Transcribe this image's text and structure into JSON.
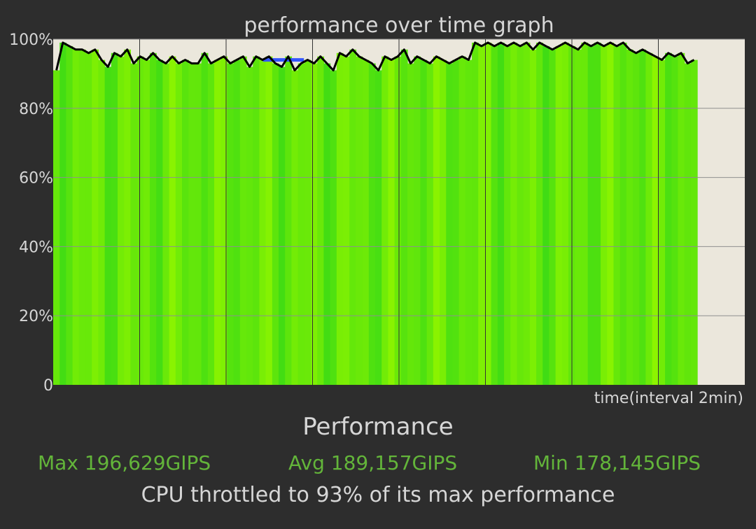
{
  "chart_data": {
    "type": "area",
    "title": "performance over time graph",
    "xlabel": "time(interval 2min)",
    "ylabel": "",
    "ylim": [
      0,
      100
    ],
    "ytick_labels": [
      "0",
      "20%",
      "40%",
      "60%",
      "80%",
      "100%"
    ],
    "yticks": [
      0,
      20,
      40,
      60,
      80,
      100
    ],
    "x_interval_min": 2,
    "x_range_min": [
      0,
      16
    ],
    "data_end_min": 14.9,
    "grid": true,
    "colors": {
      "background": "#2d2d2d",
      "plot_background": "#ebe7dc",
      "fill_light": "#8cf400",
      "fill_dark": "#3fdc14",
      "line": "#000000",
      "marker": "#3456ff",
      "grid": "#8f8f8f"
    },
    "series": [
      {
        "values": [
          91,
          99,
          98,
          97,
          97,
          96,
          97,
          94,
          92,
          96,
          95,
          97,
          93,
          95,
          94,
          96,
          94,
          93,
          95,
          93,
          94,
          93,
          93,
          96,
          93,
          94,
          95,
          93,
          94,
          95,
          92,
          95,
          94,
          95,
          93,
          92,
          95,
          91,
          93,
          94,
          93,
          95,
          93,
          91,
          96,
          95,
          97,
          95,
          94,
          93,
          91,
          95,
          94,
          95,
          97,
          93,
          95,
          94,
          93,
          95,
          94,
          93,
          94,
          95,
          94,
          99,
          98,
          99,
          98,
          99,
          98,
          99,
          98,
          99,
          97,
          99,
          98,
          97,
          98,
          99,
          98,
          97,
          99,
          98,
          99,
          98,
          99,
          98,
          99,
          97,
          96,
          97,
          96,
          95,
          94,
          96,
          95,
          96,
          93,
          94
        ]
      }
    ],
    "marker_series": {
      "x": [
        4.85,
        5.8
      ],
      "values": [
        94,
        94
      ]
    }
  },
  "summary": {
    "title": "Performance",
    "max": "Max 196,629GIPS",
    "avg": "Avg 189,157GIPS",
    "min": "Min 178,145GIPS",
    "throttle_note": "CPU throttled to 93% of its max performance"
  }
}
